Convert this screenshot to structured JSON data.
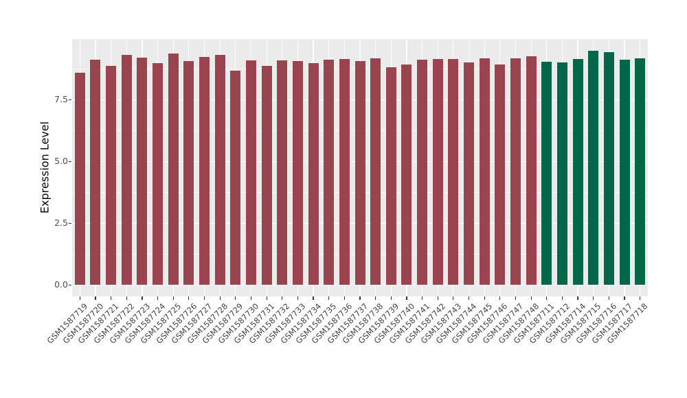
{
  "colors": {
    "panel_background": "#EBEBEB",
    "grid_major": "#FFFFFF",
    "grid_minor": "#F5F5F5",
    "tick_label": "#4D4D4D",
    "axis_title": "#000000",
    "bar_groups": {
      "maroon": "#9A4450",
      "green": "#026648"
    }
  },
  "chart_data": {
    "type": "bar",
    "title": "",
    "xlabel": "",
    "ylabel": "Expression Level",
    "ylim": [
      -0.47,
      9.94
    ],
    "grid": "on",
    "legend": "none",
    "yticks": [
      0.0,
      2.5,
      5.0,
      7.5
    ],
    "ytick_labels": [
      "0.0",
      "2.5",
      "5.0",
      "7.5"
    ],
    "minor_yticks": [
      1.25,
      3.75,
      6.25,
      8.75
    ],
    "categories": [
      "GSM1587719",
      "GSM1587720",
      "GSM1587721",
      "GSM1587722",
      "GSM1587723",
      "GSM1587724",
      "GSM1587725",
      "GSM1587726",
      "GSM1587727",
      "GSM1587728",
      "GSM1587729",
      "GSM1587730",
      "GSM1587731",
      "GSM1587732",
      "GSM1587733",
      "GSM1587734",
      "GSM1587735",
      "GSM1587736",
      "GSM1587737",
      "GSM1587738",
      "GSM1587739",
      "GSM1587740",
      "GSM1587741",
      "GSM1587742",
      "GSM1587743",
      "GSM1587744",
      "GSM1587745",
      "GSM1587746",
      "GSM1587747",
      "GSM1587748",
      "GSM1587711",
      "GSM1587712",
      "GSM1587714",
      "GSM1587715",
      "GSM1587716",
      "GSM1587717",
      "GSM1587718"
    ],
    "values": [
      8.59,
      9.1,
      8.87,
      9.3,
      9.19,
      8.98,
      9.37,
      9.06,
      9.21,
      9.31,
      8.68,
      9.07,
      8.86,
      9.09,
      9.06,
      8.97,
      9.1,
      9.13,
      9.06,
      9.18,
      8.81,
      8.92,
      9.12,
      9.13,
      9.14,
      9.0,
      9.18,
      8.91,
      9.17,
      9.26,
      9.03,
      9.0,
      9.15,
      9.47,
      9.42,
      9.11,
      9.18
    ],
    "bar_groups": [
      "maroon",
      "maroon",
      "maroon",
      "maroon",
      "maroon",
      "maroon",
      "maroon",
      "maroon",
      "maroon",
      "maroon",
      "maroon",
      "maroon",
      "maroon",
      "maroon",
      "maroon",
      "maroon",
      "maroon",
      "maroon",
      "maroon",
      "maroon",
      "maroon",
      "maroon",
      "maroon",
      "maroon",
      "maroon",
      "maroon",
      "maroon",
      "maroon",
      "maroon",
      "maroon",
      "green",
      "green",
      "green",
      "green",
      "green",
      "green",
      "green"
    ]
  }
}
